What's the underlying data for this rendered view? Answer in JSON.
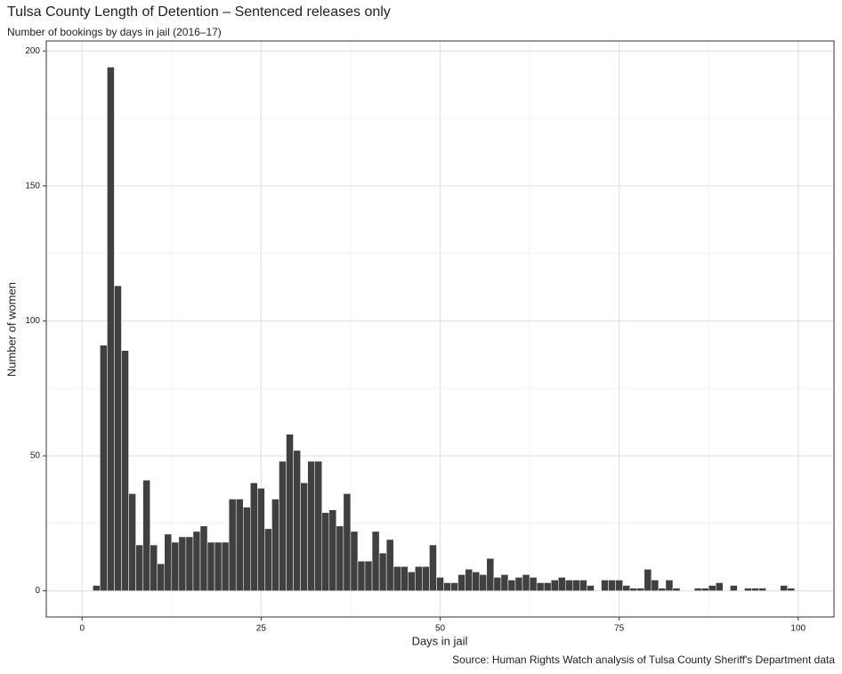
{
  "chart_data": {
    "type": "histogram",
    "title": "Tulsa County Length of Detention – Sentenced releases only",
    "subtitle": "Number of bookings by days in jail (2016–17)",
    "x_label": "Days in jail",
    "y_label": "Number of women",
    "source": "Source: Human Rights Watch analysis of Tulsa County Sheriff's Department data",
    "color": "#404040",
    "bins": [
      1.5,
      2.5,
      3.5,
      4.5,
      5.5,
      6.5,
      7.5,
      8.5,
      9.5,
      10.5,
      11.5,
      12.5,
      13.5,
      14.5,
      15.5,
      16.5,
      17.5,
      18.5,
      19.5,
      20.5,
      21.5,
      22.5,
      23.5,
      24.5,
      25.5,
      26.5,
      27.5,
      28.5,
      29.5,
      30.5,
      31.5,
      32.5,
      33.5,
      34.5,
      35.5,
      36.5,
      37.5,
      38.5,
      39.5,
      40.5,
      41.5,
      42.5,
      43.5,
      44.5,
      45.5,
      46.5,
      47.5,
      48.5,
      49.5,
      50.5,
      51.5,
      52.5,
      53.5,
      54.5,
      55.5,
      56.5,
      57.5,
      58.5,
      59.5,
      60.5,
      61.5,
      62.5,
      63.5,
      64.5,
      65.5,
      66.5,
      67.5,
      68.5,
      69.5,
      70.5,
      71.5,
      72.5,
      73.5,
      74.5,
      75.5,
      76.5,
      77.5,
      78.5,
      79.5,
      80.5,
      81.5,
      82.5,
      83.5,
      84.5,
      85.5,
      86.5,
      87.5,
      88.5,
      89.5,
      90.5,
      91.5,
      92.5,
      93.5,
      94.5,
      95.5,
      96.5,
      97.5,
      98.5,
      99.5
    ],
    "counts": [
      2,
      91,
      194,
      113,
      89,
      36,
      17,
      41,
      17,
      10,
      21,
      18,
      20,
      20,
      22,
      24,
      18,
      18,
      18,
      34,
      34,
      31,
      40,
      38,
      23,
      34,
      48,
      58,
      52,
      40,
      48,
      48,
      29,
      30,
      24,
      36,
      22,
      11,
      11,
      22,
      14,
      19,
      9,
      9,
      7,
      9,
      9,
      17,
      5,
      3,
      3,
      6,
      8,
      7,
      6,
      12,
      5,
      6,
      4,
      5,
      6,
      5,
      3,
      3,
      4,
      5,
      4,
      4,
      4,
      2,
      0,
      4,
      4,
      4,
      2,
      1,
      1,
      8,
      4,
      1,
      4,
      1,
      0,
      0,
      1,
      1,
      2,
      3,
      0,
      2,
      0,
      1,
      1,
      1,
      0,
      0,
      2,
      1
    ],
    "xlim": [
      -5,
      105
    ],
    "ylim": [
      -9.7,
      203.7
    ],
    "xticks": [
      0,
      25,
      50,
      75,
      100
    ],
    "yticks": [
      0,
      50,
      100,
      150,
      200
    ],
    "x_minor_grid": [
      12.5,
      37.5,
      62.5,
      87.5
    ],
    "y_minor_grid": [
      25,
      75,
      125,
      175
    ],
    "grid": true
  }
}
